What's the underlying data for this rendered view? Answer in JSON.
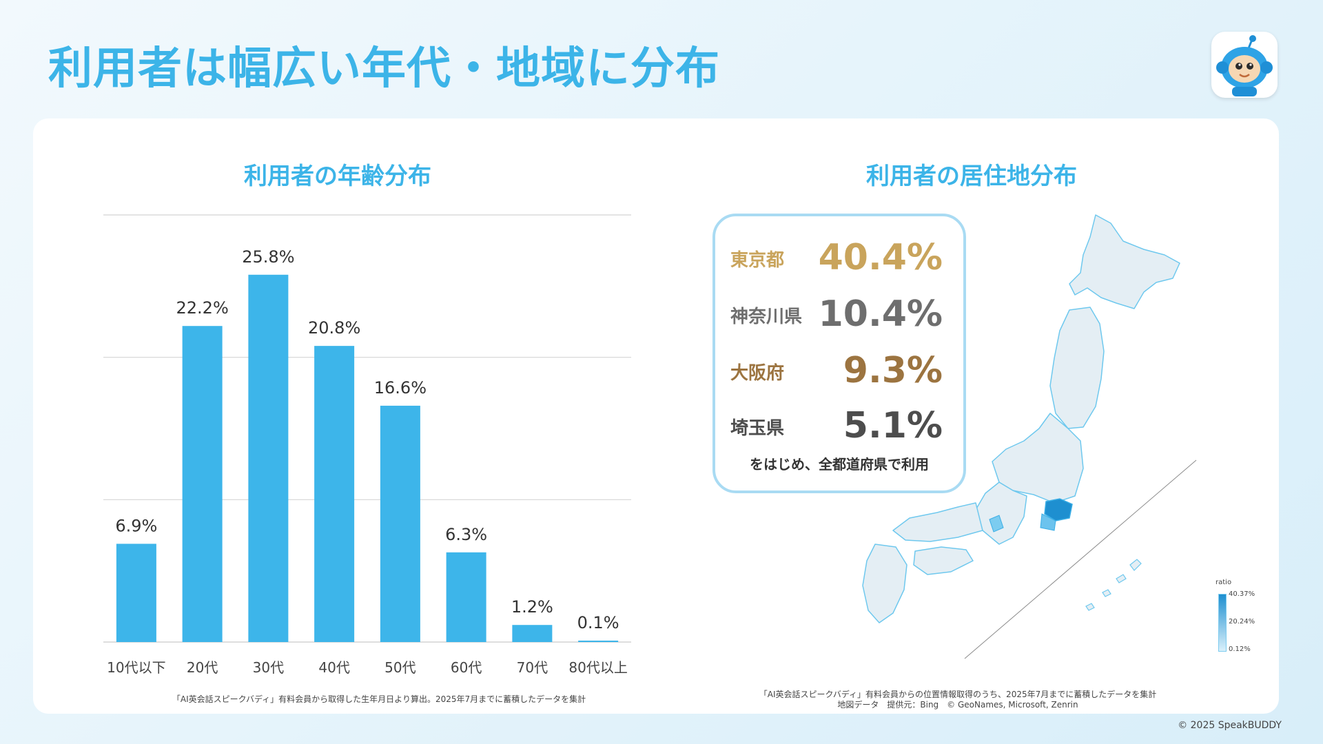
{
  "page": {
    "title": "利用者は幅広い年代・地域に分布",
    "copyright": "© 2025 SpeakBUDDY"
  },
  "colors": {
    "accent": "#3cb4e8",
    "bar": "#3db5ea",
    "tokyo": "#c9a45c",
    "osaka": "#9c7440",
    "gray": "#6e6e6e",
    "dark": "#4d4d4d"
  },
  "icons": {
    "logo": "robot-mascot-icon"
  },
  "age_panel": {
    "title": "利用者の年齢分布",
    "note": "「AI英会話スピークバディ」有料会員から取得した生年月日より算出。2025年7月までに蓄積したデータを集計"
  },
  "chart_data": {
    "type": "bar",
    "categories": [
      "10代以下",
      "20代",
      "30代",
      "40代",
      "50代",
      "60代",
      "70代",
      "80代以上"
    ],
    "values": [
      6.9,
      22.2,
      25.8,
      20.8,
      16.6,
      6.3,
      1.2,
      0.1
    ],
    "labels": [
      "6.9%",
      "22.2%",
      "25.8%",
      "20.8%",
      "16.6%",
      "6.3%",
      "1.2%",
      "0.1%"
    ],
    "ylim": [
      0,
      30
    ],
    "grid": true,
    "title": "利用者の年齢分布"
  },
  "map_panel": {
    "title": "利用者の居住地分布",
    "stats": [
      {
        "name": "東京都",
        "value": "40.4%",
        "color": "#c9a45c"
      },
      {
        "name": "神奈川県",
        "value": "10.4%",
        "color": "#6e6e6e"
      },
      {
        "name": "大阪府",
        "value": "9.3%",
        "color": "#9c7440"
      },
      {
        "name": "埼玉県",
        "value": "5.1%",
        "color": "#4d4d4d"
      }
    ],
    "stats_footer": "をはじめ、全都道府県で利用",
    "legend": {
      "title": "ratio",
      "max": "40.37%",
      "mid": "20.24%",
      "min": "0.12%"
    },
    "note_line1": "「AI英会話スピークバディ」有料会員からの位置情報取得のうち、2025年7月までに蓄積したデータを集計",
    "note_line2": "地図データ　提供元：Bing　© GeoNames, Microsoft, Zenrin"
  }
}
